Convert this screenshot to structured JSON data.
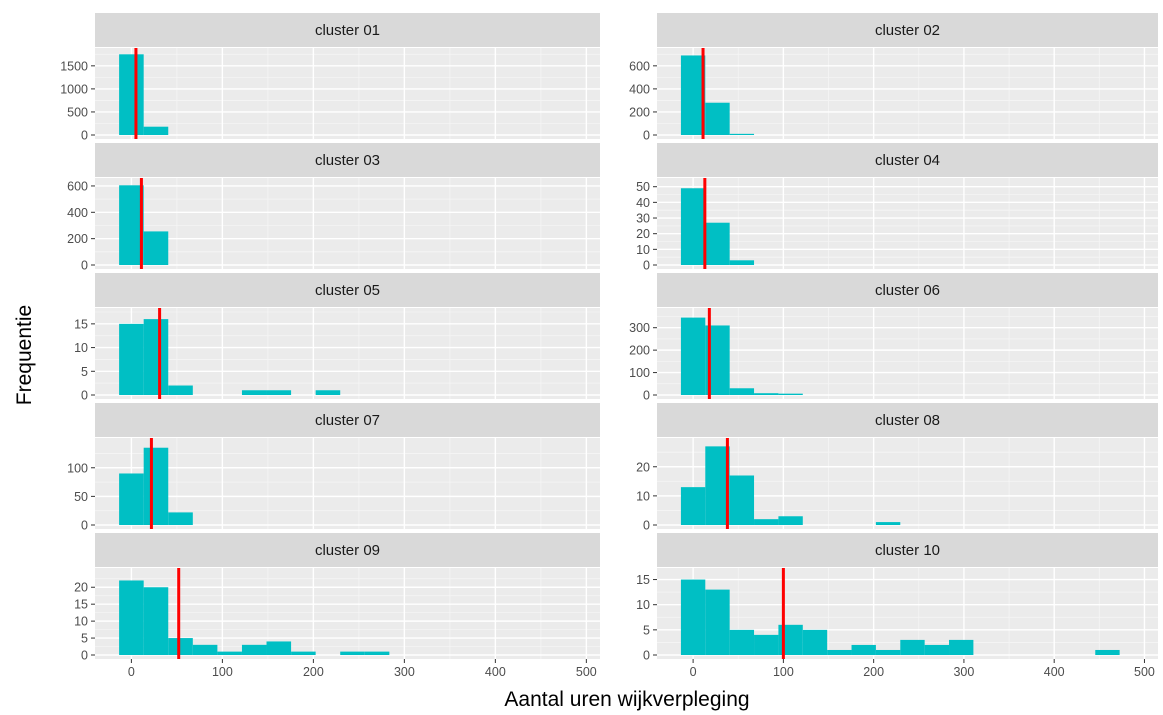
{
  "chart_data": {
    "type": "bar",
    "xlabel": "Aantal uren wijkverpleging",
    "ylabel": "Frequentie",
    "bin_width": 27,
    "x_ticks": [
      0,
      100,
      200,
      300,
      400,
      500
    ],
    "xlim": [
      -40,
      515
    ],
    "bar_color": "#00BFC4",
    "marker_color": "#FF0000",
    "panels": [
      {
        "title": "cluster 01",
        "yticks": [
          0,
          500,
          1000,
          1500
        ],
        "ylim": [
          0,
          1800
        ],
        "marker_x": 5,
        "bins": [
          {
            "x": 0,
            "count": 1750
          },
          {
            "x": 27,
            "count": 180
          }
        ]
      },
      {
        "title": "cluster 02",
        "yticks": [
          0,
          200,
          400,
          600
        ],
        "ylim": [
          0,
          720
        ],
        "marker_x": 11,
        "bins": [
          {
            "x": 0,
            "count": 690
          },
          {
            "x": 27,
            "count": 280
          },
          {
            "x": 54,
            "count": 10
          }
        ]
      },
      {
        "title": "cluster 03",
        "yticks": [
          0,
          200,
          400,
          600
        ],
        "ylim": [
          0,
          630
        ],
        "marker_x": 11,
        "bins": [
          {
            "x": 0,
            "count": 605
          },
          {
            "x": 27,
            "count": 255
          }
        ]
      },
      {
        "title": "cluster 04",
        "yticks": [
          0,
          10,
          20,
          30,
          40,
          50
        ],
        "ylim": [
          0,
          53
        ],
        "marker_x": 13,
        "bins": [
          {
            "x": 0,
            "count": 49
          },
          {
            "x": 27,
            "count": 27
          },
          {
            "x": 54,
            "count": 3
          }
        ]
      },
      {
        "title": "cluster 05",
        "yticks": [
          0,
          5,
          10,
          15
        ],
        "ylim": [
          0,
          17.5
        ],
        "marker_x": 31,
        "bins": [
          {
            "x": 0,
            "count": 15
          },
          {
            "x": 27,
            "count": 16
          },
          {
            "x": 54,
            "count": 2
          },
          {
            "x": 135,
            "count": 1
          },
          {
            "x": 162,
            "count": 1
          },
          {
            "x": 216,
            "count": 1
          }
        ]
      },
      {
        "title": "cluster 06",
        "yticks": [
          0,
          100,
          200,
          300
        ],
        "ylim": [
          0,
          370
        ],
        "marker_x": 18,
        "bins": [
          {
            "x": 0,
            "count": 345
          },
          {
            "x": 27,
            "count": 310
          },
          {
            "x": 54,
            "count": 30
          },
          {
            "x": 81,
            "count": 8
          },
          {
            "x": 108,
            "count": 6
          }
        ]
      },
      {
        "title": "cluster 07",
        "yticks": [
          0,
          50,
          100
        ],
        "ylim": [
          0,
          145
        ],
        "marker_x": 22,
        "bins": [
          {
            "x": 0,
            "count": 90
          },
          {
            "x": 27,
            "count": 135
          },
          {
            "x": 54,
            "count": 22
          }
        ]
      },
      {
        "title": "cluster 08",
        "yticks": [
          0,
          10,
          20
        ],
        "ylim": [
          0,
          28.5
        ],
        "marker_x": 38,
        "bins": [
          {
            "x": 0,
            "count": 13
          },
          {
            "x": 27,
            "count": 27
          },
          {
            "x": 54,
            "count": 17
          },
          {
            "x": 81,
            "count": 2
          },
          {
            "x": 108,
            "count": 3
          },
          {
            "x": 216,
            "count": 1
          }
        ]
      },
      {
        "title": "cluster 09",
        "yticks": [
          0,
          5,
          10,
          15,
          20
        ],
        "ylim": [
          0,
          24.5
        ],
        "marker_x": 52,
        "bins": [
          {
            "x": 0,
            "count": 22
          },
          {
            "x": 27,
            "count": 20
          },
          {
            "x": 54,
            "count": 5
          },
          {
            "x": 81,
            "count": 3
          },
          {
            "x": 108,
            "count": 1
          },
          {
            "x": 135,
            "count": 3
          },
          {
            "x": 162,
            "count": 4
          },
          {
            "x": 189,
            "count": 1
          },
          {
            "x": 243,
            "count": 1
          },
          {
            "x": 270,
            "count": 1
          }
        ]
      },
      {
        "title": "cluster 10",
        "yticks": [
          0,
          5,
          10,
          15
        ],
        "ylim": [
          0,
          16.5
        ],
        "marker_x": 100,
        "bins": [
          {
            "x": 0,
            "count": 15
          },
          {
            "x": 27,
            "count": 13
          },
          {
            "x": 54,
            "count": 5
          },
          {
            "x": 81,
            "count": 4
          },
          {
            "x": 108,
            "count": 6
          },
          {
            "x": 135,
            "count": 5
          },
          {
            "x": 162,
            "count": 1
          },
          {
            "x": 189,
            "count": 2
          },
          {
            "x": 216,
            "count": 1
          },
          {
            "x": 243,
            "count": 3
          },
          {
            "x": 270,
            "count": 2
          },
          {
            "x": 297,
            "count": 3
          },
          {
            "x": 324,
            "count": 0
          },
          {
            "x": 351,
            "count": 0
          },
          {
            "x": 378,
            "count": 0
          },
          {
            "x": 405,
            "count": 0
          },
          {
            "x": 432,
            "count": 0
          },
          {
            "x": 459,
            "count": 1
          }
        ]
      }
    ]
  }
}
